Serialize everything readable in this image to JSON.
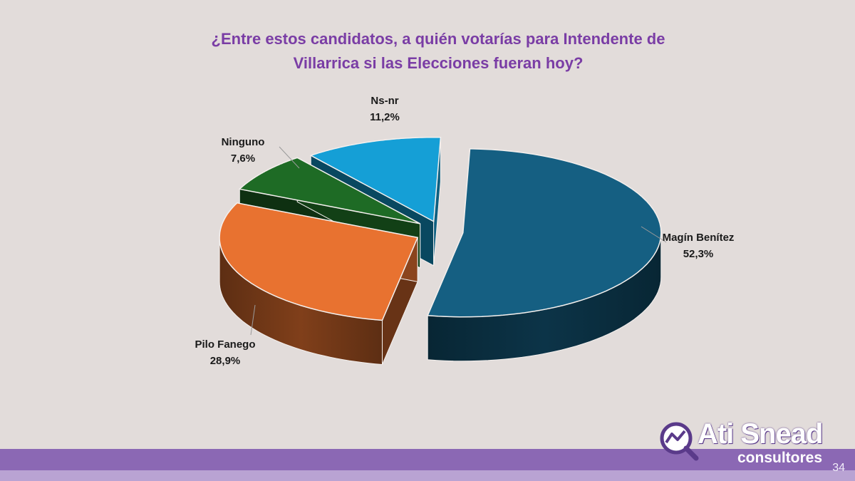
{
  "slide": {
    "title_line1": "¿Entre estos candidatos, a quién votarías para Intendente de",
    "title_line2": "Villarrica si las Elecciones fueran hoy?",
    "page_number": "34"
  },
  "logo": {
    "name": "Ati Snead",
    "subtitle": "consultores",
    "icon": "chart-magnifier-icon"
  },
  "colors": {
    "title": "#7a3da5",
    "background": "#e2dcda",
    "band_dark": "#8b68b4",
    "band_light": "#b9a3d3"
  },
  "chart_data": {
    "type": "pie",
    "title": "¿Entre estos candidatos, a quién votarías para Intendente de Villarrica si las Elecciones fueran hoy?",
    "style": "3d-exploded",
    "labels": [
      {
        "name": "Magín Benítez",
        "value_label": "52,3%"
      },
      {
        "name": "Pilo Fanego",
        "value_label": "28,9%"
      },
      {
        "name": "Ninguno",
        "value_label": "7,6%"
      },
      {
        "name": "Ns-nr",
        "value_label": "11,2%"
      }
    ],
    "slices": [
      {
        "name": "Magín Benítez",
        "value": 52.3,
        "color": "#155f82"
      },
      {
        "name": "Pilo Fanego",
        "value": 28.9,
        "color": "#e87230"
      },
      {
        "name": "Ninguno",
        "value": 7.6,
        "color": "#1e6b25"
      },
      {
        "name": "Ns-nr",
        "value": 11.2,
        "color": "#159fd6"
      }
    ]
  }
}
